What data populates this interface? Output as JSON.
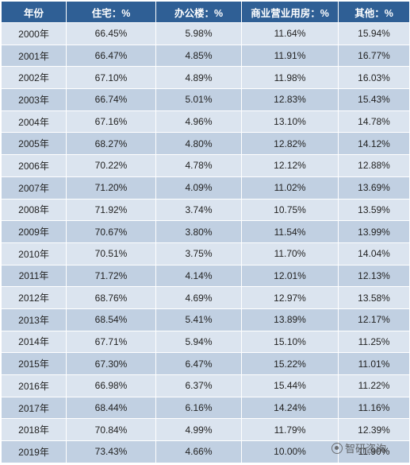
{
  "table": {
    "headers": [
      "年份",
      "住宅：%",
      "办公楼：%",
      "商业营业用房：%",
      "其他：%"
    ],
    "rows": [
      [
        "2000年",
        "66.45%",
        "5.98%",
        "11.64%",
        "15.94%"
      ],
      [
        "2001年",
        "66.47%",
        "4.85%",
        "11.91%",
        "16.77%"
      ],
      [
        "2002年",
        "67.10%",
        "4.89%",
        "11.98%",
        "16.03%"
      ],
      [
        "2003年",
        "66.74%",
        "5.01%",
        "12.83%",
        "15.43%"
      ],
      [
        "2004年",
        "67.16%",
        "4.96%",
        "13.10%",
        "14.78%"
      ],
      [
        "2005年",
        "68.27%",
        "4.80%",
        "12.82%",
        "14.12%"
      ],
      [
        "2006年",
        "70.22%",
        "4.78%",
        "12.12%",
        "12.88%"
      ],
      [
        "2007年",
        "71.20%",
        "4.09%",
        "11.02%",
        "13.69%"
      ],
      [
        "2008年",
        "71.92%",
        "3.74%",
        "10.75%",
        "13.59%"
      ],
      [
        "2009年",
        "70.67%",
        "3.80%",
        "11.54%",
        "13.99%"
      ],
      [
        "2010年",
        "70.51%",
        "3.75%",
        "11.70%",
        "14.04%"
      ],
      [
        "2011年",
        "71.72%",
        "4.14%",
        "12.01%",
        "12.13%"
      ],
      [
        "2012年",
        "68.76%",
        "4.69%",
        "12.97%",
        "13.58%"
      ],
      [
        "2013年",
        "68.54%",
        "5.41%",
        "13.89%",
        "12.17%"
      ],
      [
        "2014年",
        "67.71%",
        "5.94%",
        "15.10%",
        "11.25%"
      ],
      [
        "2015年",
        "67.30%",
        "6.47%",
        "15.22%",
        "11.01%"
      ],
      [
        "2016年",
        "66.98%",
        "6.37%",
        "15.44%",
        "11.22%"
      ],
      [
        "2017年",
        "68.44%",
        "6.16%",
        "14.24%",
        "11.16%"
      ],
      [
        "2018年",
        "70.84%",
        "4.99%",
        "11.79%",
        "12.39%"
      ],
      [
        "2019年",
        "73.43%",
        "4.66%",
        "10.00%",
        "11.90%"
      ]
    ]
  },
  "watermark": {
    "text": "智研咨询",
    "icon": "brand-logo-icon"
  },
  "colors": {
    "header_bg": "#2f5f95",
    "row_light": "#dbe4ef",
    "row_dark": "#c1d0e2"
  }
}
